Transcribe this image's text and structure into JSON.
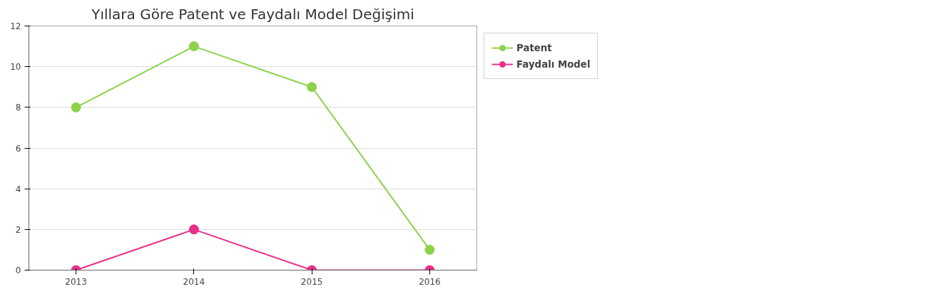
{
  "chart_data": {
    "type": "line",
    "title": "Yıllara Göre Patent ve Faydalı Model Değişimi",
    "categories": [
      "2013",
      "2014",
      "2015",
      "2016"
    ],
    "series": [
      {
        "name": "Patent",
        "color": "#8cd24a",
        "values": [
          8,
          11,
          9,
          1
        ]
      },
      {
        "name": "Faydalı Model",
        "color": "#e8308a",
        "values": [
          0,
          2,
          0,
          0
        ]
      }
    ],
    "ylim": [
      0,
      12
    ],
    "yticks": [
      0,
      2,
      4,
      6,
      8,
      10,
      12
    ],
    "grid": "y",
    "legend": "top right",
    "marker": "circle",
    "line_style": "solid"
  }
}
